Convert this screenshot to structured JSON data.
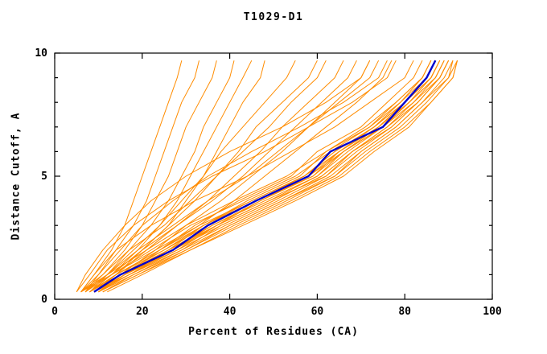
{
  "title": "T1029-D1",
  "chart_data": {
    "type": "line",
    "title": "T1029-D1",
    "xlabel": "Percent of Residues (CA)",
    "ylabel": "Distance Cutoff, A",
    "xlim": [
      0,
      100
    ],
    "ylim": [
      0,
      10
    ],
    "x_ticks": [
      0,
      20,
      40,
      60,
      80,
      100
    ],
    "y_ticks": [
      0,
      5,
      10
    ],
    "grid": false,
    "legend": "none",
    "colors": {
      "model": "#FF8C00",
      "highlight": "#0000CD",
      "axis": "#000000"
    },
    "note": "Each series lists percent-of-residues (x) at the shared distance-cutoff levels (y_levels). Orange = individual model curves, blue = highlighted consensus curve.",
    "y_levels": [
      0.3,
      1,
      2,
      3,
      4,
      5,
      6,
      7,
      8,
      9,
      9.7
    ],
    "orange_series_x": [
      [
        6,
        9,
        13,
        16,
        18,
        20,
        22,
        24,
        26,
        28,
        29
      ],
      [
        6,
        10,
        14,
        18,
        21,
        23,
        25,
        27,
        29,
        32,
        33
      ],
      [
        7,
        11,
        16,
        20,
        23,
        26,
        28,
        30,
        33,
        36,
        37
      ],
      [
        7,
        12,
        17,
        22,
        26,
        29,
        32,
        34,
        37,
        40,
        41
      ],
      [
        6,
        13,
        19,
        24,
        28,
        31,
        34,
        37,
        40,
        43,
        45
      ],
      [
        8,
        14,
        20,
        26,
        30,
        34,
        37,
        40,
        43,
        47,
        48
      ],
      [
        7,
        12,
        18,
        24,
        29,
        34,
        38,
        43,
        48,
        53,
        55
      ],
      [
        8,
        13,
        20,
        26,
        32,
        37,
        42,
        46,
        52,
        58,
        60
      ],
      [
        6,
        11,
        17,
        25,
        31,
        37,
        43,
        49,
        54,
        60,
        62
      ],
      [
        9,
        14,
        21,
        28,
        35,
        41,
        47,
        52,
        58,
        64,
        66
      ],
      [
        7,
        13,
        20,
        28,
        36,
        43,
        49,
        55,
        61,
        67,
        69
      ],
      [
        8,
        15,
        23,
        30,
        38,
        45,
        52,
        58,
        64,
        70,
        72
      ],
      [
        6,
        12,
        19,
        27,
        35,
        44,
        51,
        58,
        65,
        72,
        74
      ],
      [
        9,
        16,
        24,
        33,
        41,
        48,
        55,
        62,
        69,
        75,
        77
      ],
      [
        8,
        14,
        24,
        32,
        42,
        54,
        60,
        70,
        76,
        82,
        84
      ],
      [
        9,
        15,
        26,
        34,
        44,
        56,
        62,
        72,
        78,
        84,
        86
      ],
      [
        10,
        16,
        28,
        37,
        47,
        59,
        65,
        74,
        80,
        86,
        88
      ],
      [
        8,
        13,
        23,
        33,
        45,
        57,
        64,
        73,
        79,
        85,
        87
      ],
      [
        9,
        17,
        27,
        36,
        48,
        60,
        66,
        75,
        81,
        87,
        89
      ],
      [
        10,
        18,
        29,
        38,
        50,
        61,
        68,
        76,
        82,
        88,
        90
      ],
      [
        11,
        19,
        30,
        40,
        52,
        63,
        70,
        78,
        84,
        89,
        91
      ],
      [
        9,
        14,
        25,
        35,
        46,
        58,
        65,
        74,
        80,
        86,
        88
      ],
      [
        8,
        15,
        27,
        37,
        49,
        60,
        67,
        75,
        81,
        87,
        89
      ],
      [
        10,
        17,
        28,
        39,
        51,
        62,
        69,
        77,
        83,
        88,
        90
      ],
      [
        9,
        16,
        26,
        36,
        47,
        58,
        66,
        74,
        81,
        86,
        88
      ],
      [
        11,
        18,
        30,
        41,
        53,
        64,
        71,
        79,
        85,
        90,
        92
      ],
      [
        8,
        13,
        22,
        31,
        43,
        55,
        63,
        72,
        79,
        84,
        86
      ],
      [
        10,
        15,
        25,
        34,
        45,
        57,
        65,
        73,
        80,
        85,
        87
      ],
      [
        9,
        16,
        27,
        38,
        50,
        61,
        68,
        77,
        83,
        88,
        90
      ],
      [
        12,
        20,
        31,
        42,
        54,
        65,
        72,
        80,
        86,
        91,
        92
      ],
      [
        8,
        14,
        24,
        34,
        46,
        59,
        66,
        75,
        82,
        87,
        89
      ],
      [
        10,
        17,
        29,
        40,
        52,
        64,
        70,
        78,
        84,
        90,
        91
      ],
      [
        9,
        15,
        26,
        37,
        49,
        62,
        68,
        76,
        83,
        88,
        90
      ],
      [
        11,
        19,
        31,
        43,
        55,
        66,
        73,
        81,
        86,
        91,
        92
      ],
      [
        8,
        12,
        21,
        30,
        41,
        53,
        62,
        71,
        78,
        84,
        86
      ],
      [
        10,
        16,
        27,
        35,
        46,
        57,
        64,
        73,
        80,
        86,
        88
      ],
      [
        5,
        8,
        12,
        18,
        26,
        36,
        48,
        58,
        68,
        76,
        78
      ],
      [
        7,
        10,
        15,
        20,
        27,
        35,
        45,
        56,
        66,
        74,
        76
      ],
      [
        6,
        9,
        14,
        22,
        32,
        44,
        54,
        64,
        72,
        80,
        82
      ],
      [
        5,
        7,
        11,
        16,
        22,
        30,
        40,
        52,
        62,
        70,
        72
      ]
    ],
    "highlight_series_x": [
      9,
      15,
      27,
      35,
      46,
      58,
      63,
      75,
      80,
      85,
      87
    ]
  }
}
